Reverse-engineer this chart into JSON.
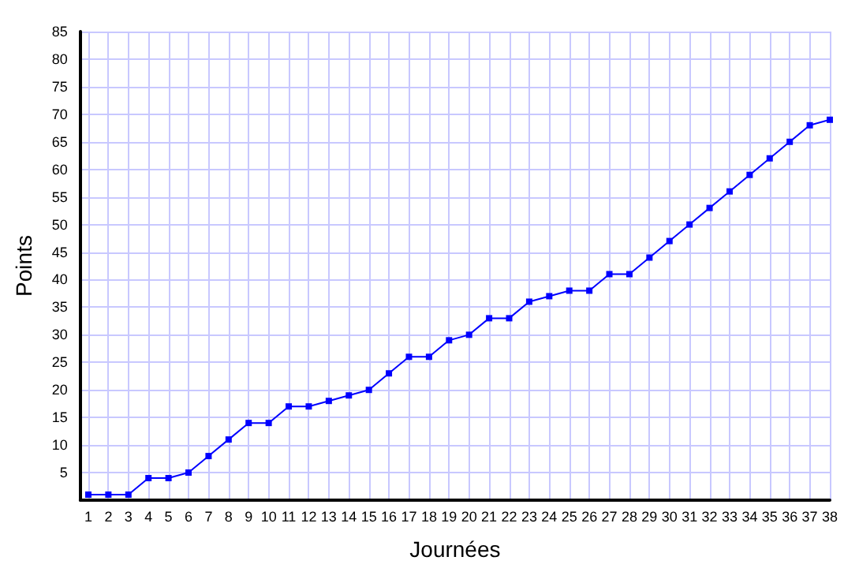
{
  "chart_data": {
    "type": "line",
    "xlabel": "Journées",
    "ylabel": "Points",
    "x": [
      1,
      2,
      3,
      4,
      5,
      6,
      7,
      8,
      9,
      10,
      11,
      12,
      13,
      14,
      15,
      16,
      17,
      18,
      19,
      20,
      21,
      22,
      23,
      24,
      25,
      26,
      27,
      28,
      29,
      30,
      31,
      32,
      33,
      34,
      35,
      36,
      37,
      38
    ],
    "series": [
      {
        "color": "#0000ff",
        "values": [
          1,
          1,
          1,
          4,
          4,
          5,
          8,
          11,
          14,
          14,
          17,
          17,
          18,
          19,
          20,
          23,
          26,
          26,
          29,
          30,
          33,
          33,
          36,
          37,
          38,
          38,
          41,
          41,
          44,
          47,
          50,
          53,
          56,
          59,
          62,
          65,
          68,
          69
        ]
      }
    ],
    "xlim": [
      0.6,
      38
    ],
    "xticks": [
      1,
      2,
      3,
      4,
      5,
      6,
      7,
      8,
      9,
      10,
      11,
      12,
      13,
      14,
      15,
      16,
      17,
      18,
      19,
      20,
      21,
      22,
      23,
      24,
      25,
      26,
      27,
      28,
      29,
      30,
      31,
      32,
      33,
      34,
      35,
      36,
      37,
      38
    ],
    "ylim": [
      0,
      85
    ],
    "yticks": [
      5,
      10,
      15,
      20,
      25,
      30,
      35,
      40,
      45,
      50,
      55,
      60,
      65,
      70,
      75,
      80,
      85
    ],
    "grid": true,
    "marker": "square",
    "line_style": "solid"
  }
}
